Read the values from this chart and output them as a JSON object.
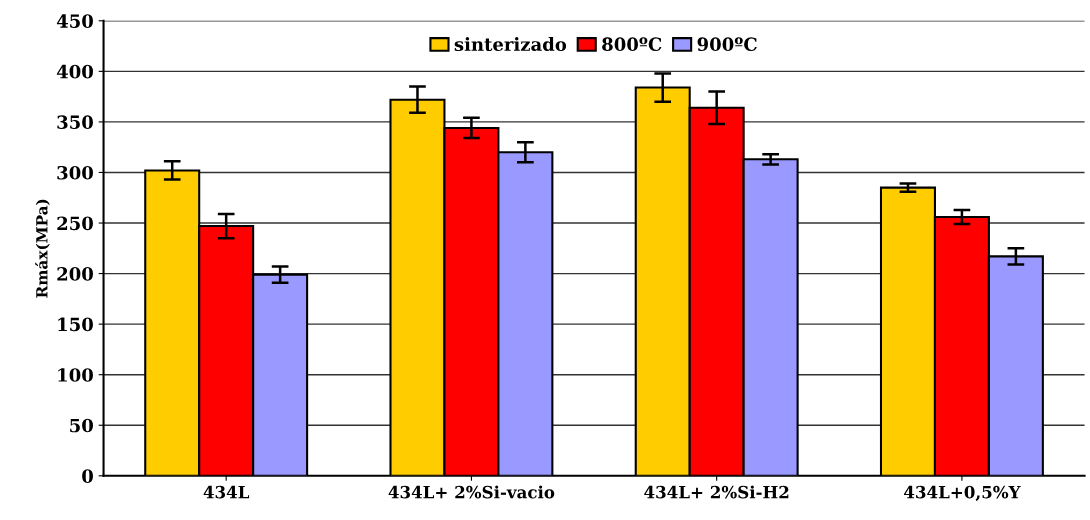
{
  "chart_data": {
    "type": "bar",
    "ylabel": "Rmáx(MPa)",
    "categories": [
      "434L",
      "434L+ 2%Si-vacio",
      "434L+ 2%Si-H2",
      "434L+0,5%Y"
    ],
    "series": [
      {
        "name": "sinterizado",
        "color": "#ffcc00",
        "values": [
          302,
          372,
          384,
          285
        ],
        "errors": [
          9,
          13,
          14,
          4
        ]
      },
      {
        "name": "800ºC",
        "color": "#ff0000",
        "values": [
          247,
          344,
          364,
          256
        ],
        "errors": [
          12,
          10,
          16,
          7
        ]
      },
      {
        "name": "900ºC",
        "color": "#9999ff",
        "values": [
          199,
          320,
          313,
          217
        ],
        "errors": [
          8,
          10,
          5,
          8
        ]
      }
    ],
    "ylim": [
      0,
      450
    ],
    "yticks": [
      0,
      50,
      100,
      150,
      200,
      250,
      300,
      350,
      400,
      450
    ],
    "grid": "y",
    "legend": "top"
  }
}
